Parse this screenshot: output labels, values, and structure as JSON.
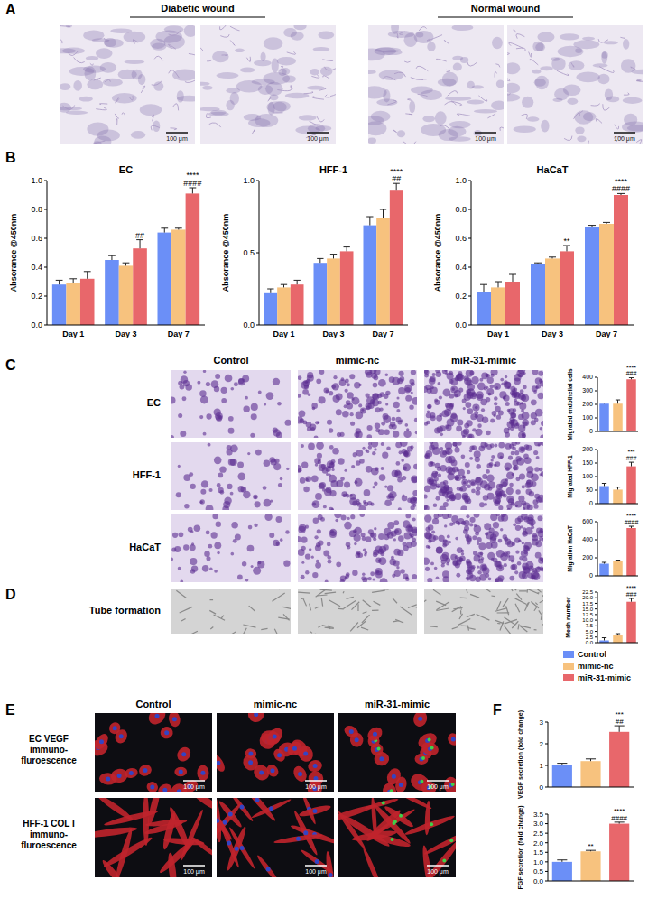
{
  "chart_data": [
    {
      "type": "bar",
      "title": "EC",
      "y_label": "Absorance @450nm",
      "categories": [
        "Day 1",
        "Day 3",
        "Day 7"
      ],
      "series": [
        {
          "name": "Control",
          "color": "#6b8ff7",
          "values": [
            0.28,
            0.45,
            0.64
          ],
          "errors": [
            0.03,
            0.03,
            0.03
          ]
        },
        {
          "name": "mimic-nc",
          "color": "#f7c27e",
          "values": [
            0.29,
            0.41,
            0.66
          ],
          "errors": [
            0.03,
            0.02,
            0.01
          ]
        },
        {
          "name": "miR-31-mimic",
          "color": "#e8676b",
          "values": [
            0.32,
            0.53,
            0.91
          ],
          "errors": [
            0.05,
            0.06,
            0.04
          ]
        }
      ],
      "ylim": [
        0,
        1.0
      ],
      "yticks": [
        {
          "value": 0,
          "label": "0.0"
        },
        0.2,
        0.4,
        0.6,
        0.8,
        {
          "value": 1,
          "label": "1.0"
        }
      ],
      "annotations": [
        {
          "category": "Day 3",
          "series": "miR-31-mimic",
          "lines": [
            "##"
          ]
        },
        {
          "category": "Day 7",
          "series": "miR-31-mimic",
          "lines": [
            "****",
            "####"
          ]
        }
      ]
    },
    {
      "type": "bar",
      "title": "HFF-1",
      "y_label": "Absorance @450nm",
      "categories": [
        "Day 1",
        "Day 3",
        "Day 7"
      ],
      "series": [
        {
          "name": "Control",
          "color": "#6b8ff7",
          "values": [
            0.22,
            0.43,
            0.69
          ],
          "errors": [
            0.03,
            0.03,
            0.06
          ]
        },
        {
          "name": "mimic-nc",
          "color": "#f7c27e",
          "values": [
            0.26,
            0.46,
            0.74
          ],
          "errors": [
            0.02,
            0.03,
            0.06
          ]
        },
        {
          "name": "miR-31-mimic",
          "color": "#e8676b",
          "values": [
            0.28,
            0.51,
            0.93
          ],
          "errors": [
            0.03,
            0.03,
            0.05
          ]
        }
      ],
      "ylim": [
        0,
        1.0
      ],
      "yticks": [
        {
          "value": 0,
          "label": "0.0"
        },
        0.5,
        {
          "value": 1,
          "label": "1.0"
        }
      ],
      "annotations": [
        {
          "category": "Day 7",
          "series": "miR-31-mimic",
          "lines": [
            "****",
            "##"
          ]
        }
      ]
    },
    {
      "type": "bar",
      "title": "HaCaT",
      "y_label": "Absorance @450nm",
      "categories": [
        "Day 1",
        "Day 3",
        "Day 7"
      ],
      "series": [
        {
          "name": "Control",
          "color": "#6b8ff7",
          "values": [
            0.23,
            0.42,
            0.68
          ],
          "errors": [
            0.05,
            0.01,
            0.01
          ]
        },
        {
          "name": "mimic-nc",
          "color": "#f7c27e",
          "values": [
            0.26,
            0.46,
            0.7
          ],
          "errors": [
            0.04,
            0.01,
            0.01
          ]
        },
        {
          "name": "miR-31-mimic",
          "color": "#e8676b",
          "values": [
            0.3,
            0.51,
            0.9
          ],
          "errors": [
            0.05,
            0.04,
            0.01
          ]
        }
      ],
      "ylim": [
        0,
        1.0
      ],
      "yticks": [
        {
          "value": 0,
          "label": "0.0"
        },
        0.2,
        0.4,
        0.6,
        0.8,
        {
          "value": 1,
          "label": "1.0"
        }
      ],
      "annotations": [
        {
          "category": "Day 3",
          "series": "miR-31-mimic",
          "lines": [
            "**"
          ]
        },
        {
          "category": "Day 7",
          "series": "miR-31-mimic",
          "lines": [
            "****",
            "####"
          ]
        }
      ]
    },
    {
      "type": "bar",
      "y_label": "Migrated endothelial cells",
      "categories": [
        "Control",
        "mimic-nc",
        "miR-31-mimic"
      ],
      "values": [
        205,
        205,
        385
      ],
      "errors": [
        5,
        28,
        12
      ],
      "colors": [
        "#6b8ff7",
        "#f7c27e",
        "#e8676b"
      ],
      "ylim": [
        0,
        400
      ],
      "yticks": [
        0,
        100,
        200,
        300,
        400
      ],
      "tick_labels": "y",
      "annotations": [
        {
          "category": "miR-31-mimic",
          "lines": [
            "****",
            "###"
          ]
        }
      ]
    },
    {
      "type": "bar",
      "y_label": "Migrated HFF-1",
      "categories": [
        "Control",
        "mimic-nc",
        "miR-31-mimic"
      ],
      "values": [
        65,
        52,
        138
      ],
      "errors": [
        10,
        9,
        15
      ],
      "colors": [
        "#6b8ff7",
        "#f7c27e",
        "#e8676b"
      ],
      "ylim": [
        0,
        200
      ],
      "yticks": [
        0,
        50,
        100,
        150,
        200
      ],
      "tick_labels": "y",
      "annotations": [
        {
          "category": "miR-31-mimic",
          "lines": [
            "***",
            "###"
          ]
        }
      ]
    },
    {
      "type": "bar",
      "y_label": "Migration HaCaT",
      "categories": [
        "Control",
        "mimic-nc",
        "miR-31-mimic"
      ],
      "values": [
        135,
        160,
        530
      ],
      "errors": [
        15,
        15,
        20
      ],
      "colors": [
        "#6b8ff7",
        "#f7c27e",
        "#e8676b"
      ],
      "ylim": [
        0,
        600
      ],
      "yticks": [
        0,
        200,
        400,
        600
      ],
      "tick_labels": "y",
      "annotations": [
        {
          "category": "miR-31-mimic",
          "lines": [
            "****",
            "####"
          ]
        }
      ]
    },
    {
      "type": "bar",
      "y_label": "Mesh number",
      "categories": [
        "Control",
        "mimic-nc",
        "miR-31-mimic"
      ],
      "values": [
        1.0,
        3.2,
        18.2
      ],
      "errors": [
        1.2,
        0.8,
        1.5
      ],
      "colors": [
        "#6b8ff7",
        "#f7c27e",
        "#e8676b"
      ],
      "ylim": [
        0,
        22.5
      ],
      "yticks": [
        {
          "value": 0,
          "label": "0.0"
        },
        2.5,
        {
          "value": 5,
          "label": "5.0"
        },
        7.5,
        {
          "value": 10,
          "label": "10.0"
        },
        12.5,
        {
          "value": 15,
          "label": "15.0"
        },
        17.5,
        {
          "value": 20,
          "label": "20.0"
        },
        22.5
      ],
      "tick_labels": "y",
      "annotations": [
        {
          "category": "miR-31-mimic",
          "lines": [
            "****",
            "###"
          ]
        }
      ]
    },
    {
      "type": "bar",
      "y_label": "VEGF secretion (fold change)",
      "categories": [
        "Control",
        "mimic-nc",
        "miR-31-mimic"
      ],
      "values": [
        1.0,
        1.2,
        2.55
      ],
      "errors": [
        0.1,
        0.1,
        0.28
      ],
      "colors": [
        "#6b8ff7",
        "#f7c27e",
        "#e8676b"
      ],
      "ylim": [
        0,
        3
      ],
      "yticks": [
        0,
        1,
        2,
        3
      ],
      "tick_labels": "y",
      "annotations": [
        {
          "category": "miR-31-mimic",
          "lines": [
            "***",
            "##"
          ]
        }
      ]
    },
    {
      "type": "bar",
      "y_label": "FGF secretion (fold change)",
      "categories": [
        "Control",
        "mimic-nc",
        "miR-31-mimic"
      ],
      "values": [
        1.0,
        1.55,
        3.0
      ],
      "errors": [
        0.1,
        0.05,
        0.08
      ],
      "colors": [
        "#6b8ff7",
        "#f7c27e",
        "#e8676b"
      ],
      "ylim": [
        0,
        3.5
      ],
      "yticks": [
        {
          "value": 0,
          "label": "0.0"
        },
        0.5,
        {
          "value": 1,
          "label": "1.0"
        },
        1.5,
        {
          "value": 2,
          "label": "2.0"
        },
        2.5,
        {
          "value": 3,
          "label": "3.0"
        },
        3.5
      ],
      "tick_labels": "y",
      "annotations": [
        {
          "category": "mimic-nc",
          "lines": [
            "**"
          ]
        },
        {
          "category": "miR-31-mimic",
          "lines": [
            "****",
            "####"
          ]
        }
      ]
    }
  ],
  "figure": {
    "panels": [
      "A",
      "B",
      "C",
      "D",
      "E",
      "F"
    ],
    "panel_a": [
      {
        "title": "Diabetic wound",
        "scale_bars": [
          "100 μm",
          "100 μm"
        ]
      },
      {
        "title": "Normal wound",
        "scale_bars": [
          "100 μm",
          "100 μm"
        ]
      }
    ],
    "columns": [
      "Control",
      "mimic-nc",
      "miR-31-mimic"
    ],
    "panel_c_rows": [
      "EC",
      "HFF-1",
      "HaCaT"
    ],
    "panel_d_row": "Tube formation",
    "panel_e_rows": [
      {
        "lines": [
          "EC VEGF",
          "immuno-",
          "fluroescence"
        ],
        "scale_bars": [
          "100 μm",
          "100 μm",
          "100 μm"
        ]
      },
      {
        "lines": [
          "HFF-1 COL I",
          "immuno-",
          "fluroescence"
        ],
        "scale_bars": [
          "100 μm",
          "100 μm",
          "100 μm"
        ]
      }
    ]
  }
}
